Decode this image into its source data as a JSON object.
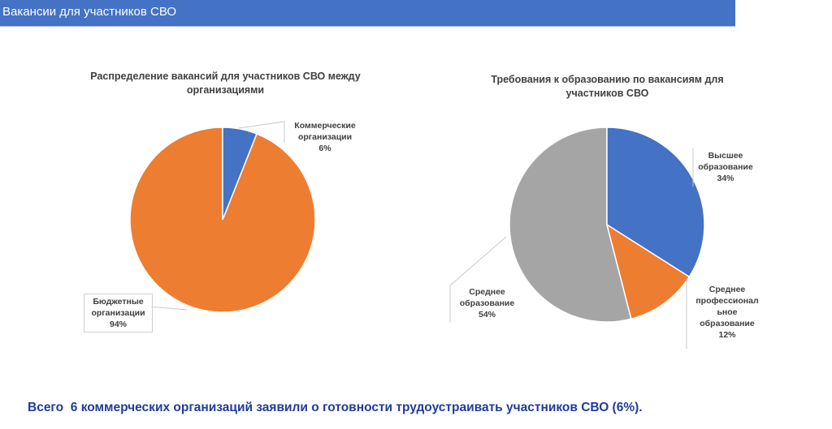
{
  "header": {
    "title": "Вакансии для участников СВО"
  },
  "chart_data": [
    {
      "type": "pie",
      "title": "Распределение вакансий для участников СВО между организациями",
      "slices": [
        {
          "label": "Коммерческие организации",
          "value": 6,
          "pct": "6%",
          "color": "#4472c4"
        },
        {
          "label": "Бюджетные организации",
          "value": 94,
          "pct": "94%",
          "color": "#ed7d31"
        }
      ]
    },
    {
      "type": "pie",
      "title": "Требования к образованию по вакансиям для участников СВО",
      "slices": [
        {
          "label": "Высшее образование",
          "value": 34,
          "pct": "34%",
          "color": "#4472c4"
        },
        {
          "label": "Среднее профессиональное образование",
          "value": 12,
          "pct": "12%",
          "color": "#ed7d31"
        },
        {
          "label": "Среднее образование",
          "value": 54,
          "pct": "54%",
          "color": "#a5a5a5"
        }
      ]
    }
  ],
  "labels": {
    "c0s0": [
      "Коммерческие",
      "организации",
      "6%"
    ],
    "c0s1": [
      "Бюджетные",
      "организации",
      "94%"
    ],
    "c1s0": [
      "Высшее",
      "образование",
      "34%"
    ],
    "c1s1": [
      "Среднее",
      "профессионал",
      "ьное",
      "образование",
      "12%"
    ],
    "c1s2": [
      "Среднее",
      "образование",
      "54%"
    ]
  },
  "footer": {
    "text": "Всего  6 коммерческих организаций заявили о готовности трудоустраивать участников СВО (6%)."
  }
}
